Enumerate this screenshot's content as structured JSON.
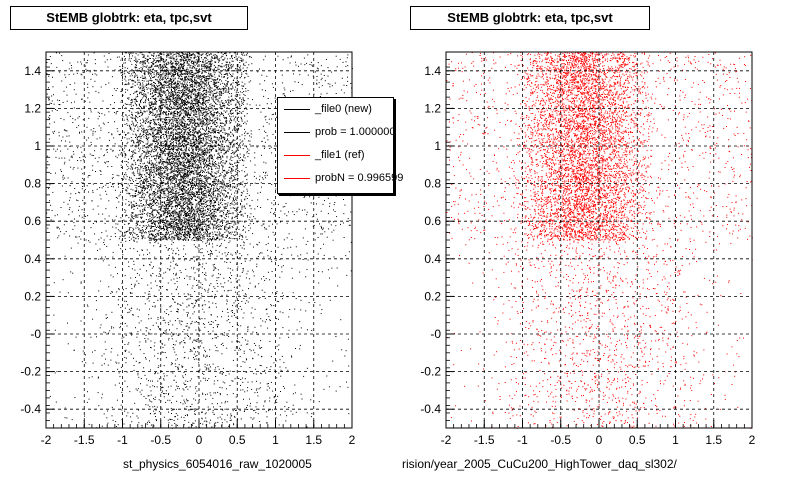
{
  "chart_data": [
    {
      "type": "scatter",
      "title": "StEMB globtrk: eta, tpc,svt",
      "xlabel": "st_physics_6054016_raw_1020005",
      "ylabel": "",
      "xlim": [
        -2,
        2
      ],
      "ylim": [
        -0.5,
        1.5
      ],
      "x_ticks": [
        "-2",
        "-1.5",
        "-1",
        "-0.5",
        "0",
        "0.5",
        "1",
        "1.5",
        "2"
      ],
      "y_ticks": [
        "-0.4",
        "-0.2",
        "-0",
        "0.2",
        "0.4",
        "0.6",
        "0.8",
        "1",
        "1.2",
        "1.4"
      ],
      "grid": true,
      "series": [
        {
          "name": "_file0 (new)",
          "color": "#000000",
          "regions": [
            {
              "x_range": [
                -2.0,
                2.0
              ],
              "y_range": [
                0.5,
                1.5
              ],
              "x_core": [
                -1.1,
                0.7
              ],
              "points": 9000
            },
            {
              "x_range": [
                -2.0,
                2.0
              ],
              "y_range": [
                -0.5,
                0.5
              ],
              "x_core": [
                -1.5,
                1.5
              ],
              "points": 1600
            }
          ]
        }
      ],
      "legend": {
        "position": "top-right",
        "entries": [
          {
            "label": "_file0 (new)",
            "color": "#000000"
          },
          {
            "label": "prob = 1.000000",
            "color": "#000000"
          },
          {
            "label": "_file1 (ref)",
            "color": "#ff0000"
          },
          {
            "label": "probN = 0.996599",
            "color": "#ff0000"
          }
        ]
      }
    },
    {
      "type": "scatter",
      "title": "StEMB globtrk: eta, tpc,svt",
      "xlabel": "rision/year_2005_CuCu200_HighTower_daq_sl302/",
      "ylabel": "",
      "xlim": [
        -2,
        2
      ],
      "ylim": [
        -0.5,
        1.5
      ],
      "x_ticks": [
        "-2",
        "-1.5",
        "-1",
        "-0.5",
        "0",
        "0.5",
        "1",
        "1.5",
        "2"
      ],
      "y_ticks": [
        "-0.4",
        "-0.2",
        "-0",
        "0.2",
        "0.4",
        "0.6",
        "0.8",
        "1",
        "1.2",
        "1.4"
      ],
      "grid": true,
      "series": [
        {
          "name": "_file1 (ref)",
          "color": "#ff0000",
          "regions": [
            {
              "x_range": [
                -2.0,
                2.0
              ],
              "y_range": [
                0.5,
                1.5
              ],
              "x_core": [
                -1.1,
                0.7
              ],
              "points": 6500
            },
            {
              "x_range": [
                -2.0,
                2.0
              ],
              "y_range": [
                -0.5,
                0.5
              ],
              "x_core": [
                -1.5,
                1.5
              ],
              "points": 1300
            }
          ]
        }
      ]
    }
  ]
}
